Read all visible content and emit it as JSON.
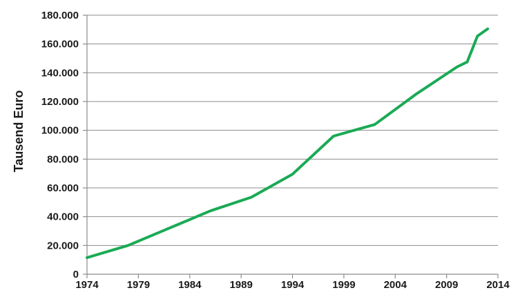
{
  "chart_data": {
    "type": "line",
    "title": "",
    "xlabel": "",
    "ylabel": "Tausend Euro",
    "xlim": [
      1974,
      2014
    ],
    "ylim": [
      0,
      180000
    ],
    "grid": true,
    "legend": "none",
    "x_ticks": [
      1974,
      1979,
      1984,
      1989,
      1994,
      1999,
      2004,
      2009,
      2014
    ],
    "y_ticks": [
      0,
      20000,
      40000,
      60000,
      80000,
      100000,
      120000,
      140000,
      160000,
      180000
    ],
    "x_tick_labels": [
      "1974",
      "1979",
      "1984",
      "1989",
      "1994",
      "1999",
      "2004",
      "2009",
      "2014"
    ],
    "y_tick_labels": [
      "0",
      "20.000",
      "40.000",
      "60.000",
      "80.000",
      "100.000",
      "120.000",
      "140.000",
      "160.000",
      "180.000"
    ],
    "series": [
      {
        "color": "#1aaa55",
        "x": [
          1974,
          1978,
          1982,
          1986,
          1990,
          1994,
          1998,
          2002,
          2006,
          2010,
          2011,
          2012,
          2013
        ],
        "y": [
          11500,
          20000,
          32000,
          44000,
          53500,
          69500,
          96000,
          104000,
          125000,
          144000,
          147500,
          165500,
          170500
        ]
      }
    ]
  }
}
